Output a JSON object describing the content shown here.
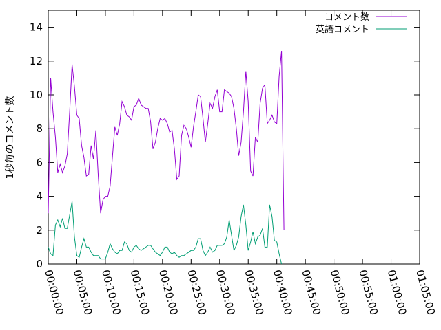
{
  "chart_data": {
    "type": "line",
    "title": "",
    "xlabel": "",
    "ylabel": "1秒毎のコメント数",
    "ylim": [
      0,
      15
    ],
    "y_ticks": [
      0,
      2,
      4,
      6,
      8,
      10,
      12,
      14
    ],
    "x_ticks": [
      "00:00:00",
      "00:05:00",
      "00:10:00",
      "00:15:00",
      "00:20:00",
      "00:25:00",
      "00:30:00",
      "00:35:00",
      "00:40:00",
      "00:45:00",
      "00:50:00",
      "00:55:00",
      "01:00:00",
      "01:05:00"
    ],
    "x_unit": "seconds",
    "xlim": [
      0,
      3900
    ],
    "grid": false,
    "legend_position": "top-right",
    "series": [
      {
        "name": "コメント数",
        "color": "#9400d3",
        "points": [
          [
            0,
            3.0
          ],
          [
            25,
            11.0
          ],
          [
            50,
            9.0
          ],
          [
            75,
            7.5
          ],
          [
            100,
            5.4
          ],
          [
            125,
            5.9
          ],
          [
            150,
            5.4
          ],
          [
            175,
            5.8
          ],
          [
            200,
            6.5
          ],
          [
            225,
            9.0
          ],
          [
            250,
            11.8
          ],
          [
            275,
            10.5
          ],
          [
            300,
            8.8
          ],
          [
            325,
            8.6
          ],
          [
            350,
            7.0
          ],
          [
            375,
            6.3
          ],
          [
            400,
            5.2
          ],
          [
            425,
            5.3
          ],
          [
            450,
            7.0
          ],
          [
            475,
            6.2
          ],
          [
            500,
            7.9
          ],
          [
            525,
            5.2
          ],
          [
            550,
            3.0
          ],
          [
            575,
            3.8
          ],
          [
            600,
            4.0
          ],
          [
            625,
            4.0
          ],
          [
            650,
            4.6
          ],
          [
            675,
            6.4
          ],
          [
            700,
            8.1
          ],
          [
            725,
            7.6
          ],
          [
            750,
            8.3
          ],
          [
            775,
            9.6
          ],
          [
            800,
            9.3
          ],
          [
            825,
            8.8
          ],
          [
            850,
            8.7
          ],
          [
            875,
            8.5
          ],
          [
            900,
            9.3
          ],
          [
            925,
            9.4
          ],
          [
            950,
            9.8
          ],
          [
            975,
            9.4
          ],
          [
            1000,
            9.3
          ],
          [
            1025,
            9.2
          ],
          [
            1050,
            9.2
          ],
          [
            1075,
            8.4
          ],
          [
            1100,
            6.8
          ],
          [
            1125,
            7.2
          ],
          [
            1150,
            8.0
          ],
          [
            1175,
            8.6
          ],
          [
            1200,
            8.5
          ],
          [
            1225,
            8.6
          ],
          [
            1250,
            8.3
          ],
          [
            1275,
            7.8
          ],
          [
            1300,
            7.9
          ],
          [
            1325,
            6.8
          ],
          [
            1350,
            5.0
          ],
          [
            1375,
            5.2
          ],
          [
            1400,
            7.6
          ],
          [
            1425,
            8.2
          ],
          [
            1450,
            8.0
          ],
          [
            1475,
            7.5
          ],
          [
            1500,
            6.9
          ],
          [
            1525,
            8.1
          ],
          [
            1550,
            9.0
          ],
          [
            1575,
            10.0
          ],
          [
            1600,
            9.9
          ],
          [
            1625,
            8.6
          ],
          [
            1650,
            7.2
          ],
          [
            1675,
            8.3
          ],
          [
            1700,
            9.5
          ],
          [
            1725,
            9.2
          ],
          [
            1750,
            9.9
          ],
          [
            1775,
            10.3
          ],
          [
            1800,
            9.0
          ],
          [
            1825,
            9.0
          ],
          [
            1850,
            10.3
          ],
          [
            1875,
            10.2
          ],
          [
            1900,
            10.1
          ],
          [
            1925,
            9.9
          ],
          [
            1950,
            9.2
          ],
          [
            1975,
            8.0
          ],
          [
            2000,
            6.4
          ],
          [
            2025,
            7.2
          ],
          [
            2050,
            9.0
          ],
          [
            2075,
            11.4
          ],
          [
            2100,
            9.6
          ],
          [
            2125,
            5.5
          ],
          [
            2150,
            5.2
          ],
          [
            2175,
            7.5
          ],
          [
            2200,
            7.2
          ],
          [
            2225,
            9.5
          ],
          [
            2250,
            10.4
          ],
          [
            2275,
            10.6
          ],
          [
            2300,
            8.3
          ],
          [
            2325,
            8.5
          ],
          [
            2350,
            8.8
          ],
          [
            2375,
            8.4
          ],
          [
            2400,
            8.3
          ],
          [
            2425,
            11.1
          ],
          [
            2450,
            12.6
          ],
          [
            2475,
            2.0
          ]
        ]
      },
      {
        "name": "英語コメント",
        "color": "#009e73",
        "points": [
          [
            0,
            1.0
          ],
          [
            25,
            0.6
          ],
          [
            50,
            0.5
          ],
          [
            75,
            2.3
          ],
          [
            100,
            2.6
          ],
          [
            125,
            2.2
          ],
          [
            150,
            2.7
          ],
          [
            175,
            2.1
          ],
          [
            200,
            2.1
          ],
          [
            225,
            2.9
          ],
          [
            250,
            3.7
          ],
          [
            275,
            1.6
          ],
          [
            300,
            0.5
          ],
          [
            325,
            0.4
          ],
          [
            350,
            1.0
          ],
          [
            375,
            1.5
          ],
          [
            400,
            1.0
          ],
          [
            425,
            1.0
          ],
          [
            450,
            0.7
          ],
          [
            475,
            0.5
          ],
          [
            500,
            0.5
          ],
          [
            525,
            0.5
          ],
          [
            550,
            0.3
          ],
          [
            575,
            0.3
          ],
          [
            600,
            0.3
          ],
          [
            625,
            0.7
          ],
          [
            650,
            1.2
          ],
          [
            675,
            0.9
          ],
          [
            700,
            0.7
          ],
          [
            725,
            0.6
          ],
          [
            750,
            0.8
          ],
          [
            775,
            0.8
          ],
          [
            800,
            1.3
          ],
          [
            825,
            1.2
          ],
          [
            850,
            0.8
          ],
          [
            875,
            0.7
          ],
          [
            900,
            1.0
          ],
          [
            925,
            1.1
          ],
          [
            950,
            0.9
          ],
          [
            975,
            0.8
          ],
          [
            1000,
            0.9
          ],
          [
            1025,
            1.0
          ],
          [
            1050,
            1.1
          ],
          [
            1075,
            1.1
          ],
          [
            1100,
            0.9
          ],
          [
            1125,
            0.7
          ],
          [
            1150,
            0.6
          ],
          [
            1175,
            0.5
          ],
          [
            1200,
            0.7
          ],
          [
            1225,
            1.0
          ],
          [
            1250,
            1.0
          ],
          [
            1275,
            0.7
          ],
          [
            1300,
            0.6
          ],
          [
            1325,
            0.7
          ],
          [
            1350,
            0.5
          ],
          [
            1375,
            0.4
          ],
          [
            1400,
            0.5
          ],
          [
            1425,
            0.5
          ],
          [
            1450,
            0.6
          ],
          [
            1475,
            0.7
          ],
          [
            1500,
            0.8
          ],
          [
            1525,
            0.8
          ],
          [
            1550,
            1.0
          ],
          [
            1575,
            1.5
          ],
          [
            1600,
            1.5
          ],
          [
            1625,
            0.8
          ],
          [
            1650,
            0.5
          ],
          [
            1675,
            0.7
          ],
          [
            1700,
            1.0
          ],
          [
            1725,
            0.7
          ],
          [
            1750,
            0.8
          ],
          [
            1775,
            1.1
          ],
          [
            1800,
            1.1
          ],
          [
            1825,
            1.1
          ],
          [
            1850,
            1.2
          ],
          [
            1875,
            1.6
          ],
          [
            1900,
            2.6
          ],
          [
            1925,
            1.7
          ],
          [
            1950,
            0.8
          ],
          [
            1975,
            1.1
          ],
          [
            2000,
            1.6
          ],
          [
            2025,
            2.8
          ],
          [
            2050,
            3.5
          ],
          [
            2075,
            2.3
          ],
          [
            2100,
            0.8
          ],
          [
            2125,
            1.3
          ],
          [
            2150,
            1.9
          ],
          [
            2175,
            1.2
          ],
          [
            2200,
            1.6
          ],
          [
            2225,
            1.7
          ],
          [
            2250,
            2.1
          ],
          [
            2275,
            1.0
          ],
          [
            2300,
            1.0
          ],
          [
            2325,
            3.5
          ],
          [
            2350,
            2.8
          ],
          [
            2375,
            1.4
          ],
          [
            2400,
            1.3
          ],
          [
            2425,
            0.6
          ],
          [
            2450,
            0.0
          ]
        ]
      }
    ]
  }
}
